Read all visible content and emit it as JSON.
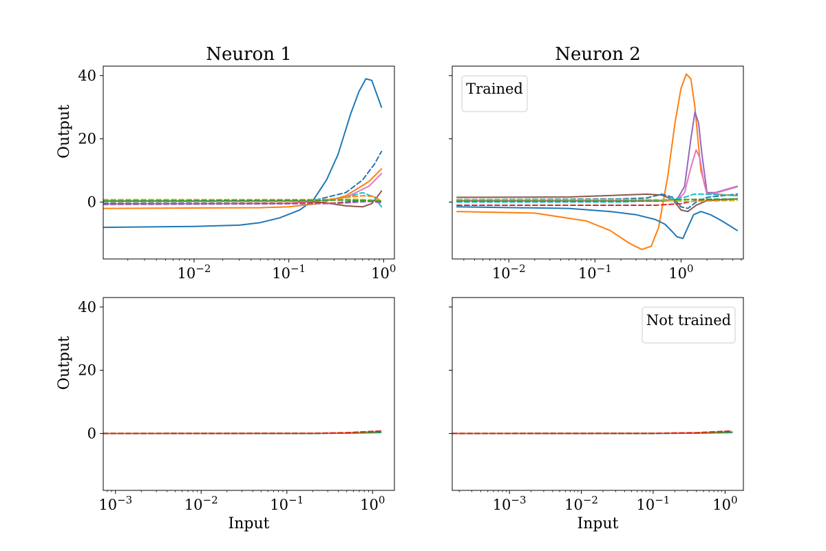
{
  "figure": {
    "colors": {
      "blue": "#1f77b4",
      "orange": "#ff7f0e",
      "green": "#2ca02c",
      "red": "#d62728",
      "purple": "#9467bd",
      "brown": "#8c564b",
      "pink": "#e377c2",
      "gray": "#7f7f7f",
      "olive": "#bcbd22",
      "cyan": "#17becf"
    }
  },
  "chart_data": [
    {
      "type": "line",
      "panel": "top-left",
      "title": "Neuron 1",
      "xlabel": "",
      "ylabel": "Output",
      "xscale": "log",
      "xlim": [
        0.0011,
        1.3
      ],
      "ylim": [
        -18,
        43
      ],
      "xticks": [
        {
          "value": 0.01,
          "label": "10",
          "exp": "−2"
        },
        {
          "value": 0.1,
          "label": "10",
          "exp": "−1"
        },
        {
          "value": 1,
          "label": "10",
          "exp": "0"
        }
      ],
      "yticks": [
        {
          "value": 0,
          "label": "0"
        },
        {
          "value": 20,
          "label": "20"
        },
        {
          "value": 40,
          "label": "40"
        }
      ],
      "legend": null,
      "series": [
        {
          "color": "blue",
          "dash": false,
          "x": [
            0.0011,
            0.01,
            0.03,
            0.05,
            0.08,
            0.13,
            0.18,
            0.25,
            0.33,
            0.45,
            0.55,
            0.65,
            0.75,
            0.95
          ],
          "y": [
            -8,
            -7.7,
            -7.3,
            -6.5,
            -5,
            -2.5,
            0.5,
            7,
            15,
            28,
            35,
            39,
            38.5,
            30
          ]
        },
        {
          "color": "blue",
          "dash": true,
          "x": [
            0.0011,
            0.1,
            0.2,
            0.4,
            0.6,
            0.8,
            0.95
          ],
          "y": [
            0.5,
            0.5,
            0.8,
            3,
            7,
            12,
            16
          ]
        },
        {
          "color": "orange",
          "dash": false,
          "x": [
            0.0011,
            0.05,
            0.1,
            0.2,
            0.4,
            0.7,
            0.95
          ],
          "y": [
            -2,
            -1.8,
            -1.5,
            -0.5,
            2,
            6.5,
            10.5
          ]
        },
        {
          "color": "pink",
          "dash": false,
          "x": [
            0.0011,
            0.1,
            0.2,
            0.4,
            0.7,
            0.95
          ],
          "y": [
            -0.6,
            -0.4,
            0.3,
            1.5,
            5,
            9
          ]
        },
        {
          "color": "brown",
          "dash": false,
          "x": [
            0.0011,
            0.15,
            0.25,
            0.4,
            0.6,
            0.75,
            0.85,
            0.95
          ],
          "y": [
            0.3,
            0.3,
            -0.3,
            -1.2,
            -1.5,
            -0.5,
            1.5,
            3.5
          ]
        },
        {
          "color": "cyan",
          "dash": true,
          "x": [
            0.0011,
            0.2,
            0.4,
            0.6,
            0.8,
            0.95
          ],
          "y": [
            0,
            0.3,
            1.5,
            3,
            1.5,
            -1.5
          ]
        },
        {
          "color": "orange",
          "dash": true,
          "x": [
            0.0011,
            0.2,
            0.4,
            0.6,
            0.8,
            0.95
          ],
          "y": [
            0.2,
            0.5,
            1.5,
            2,
            1.8,
            0.2
          ]
        },
        {
          "color": "olive",
          "dash": true,
          "x": [
            0.0011,
            0.2,
            0.5,
            0.95
          ],
          "y": [
            0.8,
            0.8,
            0.9,
            0.5
          ]
        },
        {
          "color": "red",
          "dash": true,
          "x": [
            0.0011,
            0.3,
            0.6,
            0.95
          ],
          "y": [
            -0.5,
            -0.3,
            0.5,
            0.2
          ]
        },
        {
          "color": "purple",
          "dash": true,
          "x": [
            0.0011,
            0.3,
            0.7,
            0.95
          ],
          "y": [
            -0.8,
            -0.5,
            0.2,
            -0.2
          ]
        },
        {
          "color": "green",
          "dash": true,
          "x": [
            0.0011,
            0.4,
            0.95
          ],
          "y": [
            0.4,
            0.6,
            0.3
          ]
        }
      ]
    },
    {
      "type": "line",
      "panel": "top-right",
      "title": "Neuron 2",
      "xlabel": "",
      "ylabel": "",
      "xscale": "log",
      "xlim": [
        0.0022,
        5.3
      ],
      "ylim": [
        -18,
        43
      ],
      "xticks": [
        {
          "value": 0.01,
          "label": "10",
          "exp": "−2"
        },
        {
          "value": 0.1,
          "label": "10",
          "exp": "−1"
        },
        {
          "value": 1,
          "label": "10",
          "exp": "0"
        }
      ],
      "yticks": [
        {
          "value": 0,
          "label": ""
        },
        {
          "value": 20,
          "label": ""
        },
        {
          "value": 40,
          "label": ""
        }
      ],
      "legend": {
        "text": "Trained",
        "position": "top-left"
      },
      "series": [
        {
          "color": "orange",
          "dash": false,
          "x": [
            0.0025,
            0.02,
            0.08,
            0.15,
            0.25,
            0.35,
            0.45,
            0.55,
            0.7,
            0.85,
            1.0,
            1.15,
            1.3,
            1.45,
            1.7,
            2.0,
            2.6,
            4.5
          ],
          "y": [
            -3,
            -3.5,
            -6,
            -9,
            -13,
            -15,
            -14,
            -8,
            8,
            25,
            36,
            40.5,
            39,
            30,
            10,
            3,
            2.5,
            2
          ]
        },
        {
          "color": "purple",
          "dash": false,
          "x": [
            0.0025,
            0.3,
            0.6,
            0.9,
            1.1,
            1.3,
            1.45,
            1.6,
            1.75,
            2.0,
            2.5,
            4.5
          ],
          "y": [
            0.5,
            0.5,
            0.5,
            0.8,
            5,
            20,
            28.5,
            25,
            15,
            3,
            3,
            5
          ]
        },
        {
          "color": "pink",
          "dash": false,
          "x": [
            0.0025,
            0.3,
            0.6,
            0.9,
            1.1,
            1.3,
            1.5,
            1.65,
            1.85,
            2.0,
            2.5,
            4.5
          ],
          "y": [
            0.3,
            0.3,
            0.3,
            0.5,
            3,
            11,
            16.5,
            14,
            6,
            2.5,
            2.8,
            4.8
          ]
        },
        {
          "color": "blue",
          "dash": false,
          "x": [
            0.0025,
            0.05,
            0.15,
            0.3,
            0.5,
            0.65,
            0.8,
            0.9,
            1.05,
            1.2,
            1.4,
            1.7,
            2.2,
            3.0,
            4.5
          ],
          "y": [
            -1.5,
            -2,
            -3,
            -4,
            -5.5,
            -7,
            -9.5,
            -11,
            -11.5,
            -8,
            -4,
            -3,
            -4,
            -6,
            -9
          ]
        },
        {
          "color": "brown",
          "dash": false,
          "x": [
            0.0025,
            0.05,
            0.2,
            0.4,
            0.6,
            0.8,
            1.0,
            1.2,
            1.5,
            2.0,
            4.5
          ],
          "y": [
            1.5,
            1.6,
            2.2,
            2.5,
            2.2,
            0.8,
            -2.5,
            -3,
            -1,
            0.5,
            1
          ]
        },
        {
          "color": "blue",
          "dash": true,
          "x": [
            0.0025,
            0.2,
            0.4,
            0.6,
            0.8,
            1.0,
            1.2,
            1.5,
            2.0,
            4.5
          ],
          "y": [
            0.8,
            1,
            1.3,
            2.5,
            1.5,
            -1.5,
            -2,
            0,
            1.5,
            2.5
          ]
        },
        {
          "color": "cyan",
          "dash": true,
          "x": [
            0.0025,
            0.2,
            0.5,
            0.8,
            1.1,
            1.4,
            2.0,
            4.5
          ],
          "y": [
            0,
            0,
            0.5,
            1,
            1.5,
            2.5,
            2.5,
            2
          ]
        },
        {
          "color": "red",
          "dash": true,
          "x": [
            0.0025,
            0.5,
            1.0,
            1.5,
            4.5
          ],
          "y": [
            -1,
            -1,
            -0.5,
            0.5,
            1
          ]
        },
        {
          "color": "green",
          "dash": true,
          "x": [
            0.0025,
            0.5,
            1.0,
            4.5
          ],
          "y": [
            0.3,
            0.3,
            0.8,
            1
          ]
        },
        {
          "color": "olive",
          "dash": true,
          "x": [
            0.0025,
            0.5,
            1.2,
            4.5
          ],
          "y": [
            0.8,
            0.8,
            0.2,
            0.5
          ]
        }
      ]
    },
    {
      "type": "line",
      "panel": "bottom-left",
      "title": "",
      "xlabel": "Input",
      "ylabel": "Output",
      "xscale": "log",
      "xlim": [
        0.00072,
        1.8
      ],
      "ylim": [
        -18,
        43
      ],
      "xticks": [
        {
          "value": 0.001,
          "label": "10",
          "exp": "−3"
        },
        {
          "value": 0.01,
          "label": "10",
          "exp": "−2"
        },
        {
          "value": 0.1,
          "label": "10",
          "exp": "−1"
        },
        {
          "value": 1,
          "label": "10",
          "exp": "0"
        }
      ],
      "yticks": [
        {
          "value": 0,
          "label": "0"
        },
        {
          "value": 20,
          "label": "20"
        },
        {
          "value": 40,
          "label": "40"
        }
      ],
      "legend": null,
      "series": [
        {
          "color": "blue",
          "dash": false,
          "x": [
            0.00072,
            0.2,
            0.5,
            1.25
          ],
          "y": [
            0,
            0,
            0.1,
            0.3
          ]
        },
        {
          "color": "orange",
          "dash": false,
          "x": [
            0.00072,
            0.2,
            0.5,
            1.25
          ],
          "y": [
            0,
            0.05,
            0.2,
            0.6
          ]
        },
        {
          "color": "green",
          "dash": true,
          "x": [
            0.00072,
            0.2,
            0.5,
            1.25
          ],
          "y": [
            0,
            0.05,
            0.15,
            0.4
          ]
        },
        {
          "color": "red",
          "dash": true,
          "x": [
            0.00072,
            0.2,
            0.5,
            1.25
          ],
          "y": [
            0,
            0.05,
            0.25,
            0.8
          ]
        }
      ]
    },
    {
      "type": "line",
      "panel": "bottom-right",
      "title": "",
      "xlabel": "Input",
      "ylabel": "",
      "xscale": "log",
      "xlim": [
        0.00016,
        1.8
      ],
      "ylim": [
        -18,
        43
      ],
      "xticks": [
        {
          "value": 0.001,
          "label": "10",
          "exp": "−3"
        },
        {
          "value": 0.01,
          "label": "10",
          "exp": "−2"
        },
        {
          "value": 0.1,
          "label": "10",
          "exp": "−1"
        },
        {
          "value": 1,
          "label": "10",
          "exp": "0"
        }
      ],
      "yticks": [
        {
          "value": 0,
          "label": ""
        },
        {
          "value": 20,
          "label": ""
        },
        {
          "value": 40,
          "label": ""
        }
      ],
      "legend": {
        "text": "Not trained",
        "position": "top-right"
      },
      "series": [
        {
          "color": "blue",
          "dash": false,
          "x": [
            0.00016,
            0.1,
            0.4,
            1.25
          ],
          "y": [
            0,
            0,
            0.1,
            0.3
          ]
        },
        {
          "color": "orange",
          "dash": false,
          "x": [
            0.00016,
            0.1,
            0.4,
            1.25
          ],
          "y": [
            0,
            0.05,
            0.2,
            0.6
          ]
        },
        {
          "color": "green",
          "dash": true,
          "x": [
            0.00016,
            0.1,
            0.4,
            1.25
          ],
          "y": [
            0,
            0.05,
            0.15,
            0.4
          ]
        },
        {
          "color": "red",
          "dash": true,
          "x": [
            0.00016,
            0.1,
            0.4,
            1.25
          ],
          "y": [
            0,
            0.05,
            0.25,
            0.8
          ]
        }
      ]
    }
  ]
}
